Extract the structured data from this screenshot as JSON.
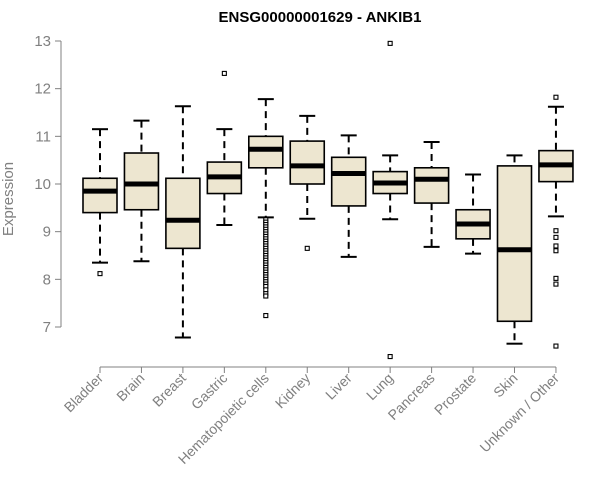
{
  "chart_data": {
    "type": "boxplot",
    "title": "ENSG00000001629 - ANKIB1",
    "xlabel": "",
    "ylabel": "Expression",
    "ylim": [
      6.5,
      13.1
    ],
    "yticks": [
      7,
      8,
      9,
      10,
      11,
      12,
      13
    ],
    "box_fill": "#ede6d0",
    "categories": [
      "Bladder",
      "Brain",
      "Breast",
      "Gastric",
      "Hematopoietic cells",
      "Kidney",
      "Liver",
      "Lung",
      "Pancreas",
      "Prostate",
      "Skin",
      "Unknown / Other"
    ],
    "boxes": [
      {
        "min": 8.35,
        "q1": 9.4,
        "median": 9.85,
        "q3": 10.12,
        "max": 11.15,
        "outliers": [
          8.12
        ]
      },
      {
        "min": 8.38,
        "q1": 9.46,
        "median": 10.0,
        "q3": 10.65,
        "max": 11.33,
        "outliers": []
      },
      {
        "min": 6.78,
        "q1": 8.65,
        "median": 9.24,
        "q3": 10.12,
        "max": 11.63,
        "outliers": []
      },
      {
        "min": 9.14,
        "q1": 9.8,
        "median": 10.15,
        "q3": 10.46,
        "max": 11.15,
        "outliers": [
          12.32
        ]
      },
      {
        "min": 9.3,
        "q1": 10.34,
        "median": 10.73,
        "q3": 11.0,
        "max": 11.78,
        "outliers": [
          9.25,
          9.2,
          9.15,
          9.1,
          9.05,
          9.0,
          8.95,
          8.9,
          8.85,
          8.8,
          8.75,
          8.7,
          8.65,
          8.6,
          8.55,
          8.5,
          8.45,
          8.4,
          8.35,
          8.3,
          8.25,
          8.2,
          8.15,
          8.1,
          8.05,
          8.0,
          7.95,
          7.9,
          7.85,
          7.78,
          7.7,
          7.65,
          7.24
        ]
      },
      {
        "min": 9.27,
        "q1": 10.0,
        "median": 10.38,
        "q3": 10.9,
        "max": 11.43,
        "outliers": [
          8.65
        ]
      },
      {
        "min": 8.47,
        "q1": 9.54,
        "median": 10.22,
        "q3": 10.56,
        "max": 11.02,
        "outliers": []
      },
      {
        "min": 9.26,
        "q1": 9.8,
        "median": 10.02,
        "q3": 10.26,
        "max": 10.6,
        "outliers": [
          12.95,
          6.38
        ]
      },
      {
        "min": 8.68,
        "q1": 9.6,
        "median": 10.1,
        "q3": 10.34,
        "max": 10.88,
        "outliers": []
      },
      {
        "min": 8.54,
        "q1": 8.85,
        "median": 9.16,
        "q3": 9.46,
        "max": 10.2,
        "outliers": []
      },
      {
        "min": 6.65,
        "q1": 7.12,
        "median": 8.62,
        "q3": 10.38,
        "max": 10.6,
        "outliers": []
      },
      {
        "min": 9.32,
        "q1": 10.05,
        "median": 10.4,
        "q3": 10.7,
        "max": 11.62,
        "outliers": [
          11.82,
          9.02,
          8.88,
          8.7,
          8.6,
          8.02,
          7.9,
          6.6
        ]
      }
    ]
  }
}
